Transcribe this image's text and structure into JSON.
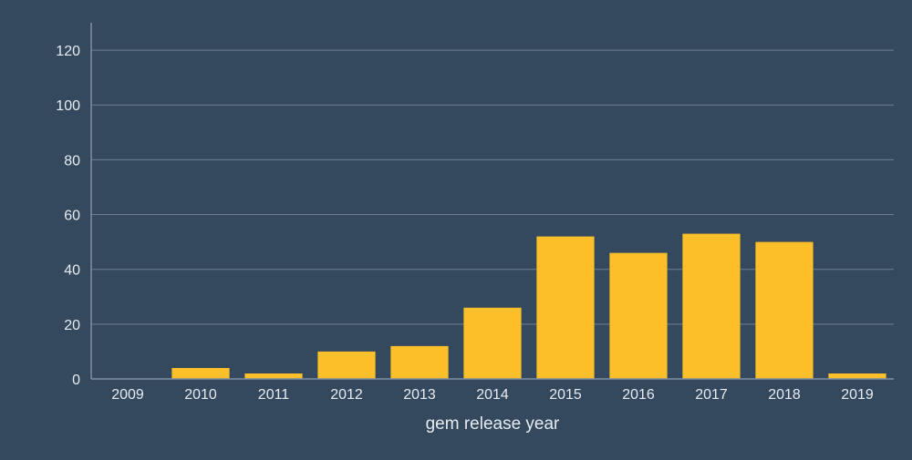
{
  "chart_data": {
    "type": "bar",
    "categories": [
      "2009",
      "2010",
      "2011",
      "2012",
      "2013",
      "2014",
      "2015",
      "2016",
      "2017",
      "2018",
      "2019"
    ],
    "values": [
      0,
      4,
      2,
      10,
      12,
      26,
      52,
      46,
      53,
      50,
      2
    ],
    "title": "",
    "xlabel": "gem release year",
    "ylabel": "",
    "ylim": [
      0,
      130
    ],
    "yticks": [
      0,
      20,
      40,
      60,
      80,
      100,
      120
    ],
    "grid": true,
    "legend": "none",
    "colors": {
      "background": "#34495e",
      "bar": "#fbbf2a",
      "grid": "#6e7f92",
      "text": "#e6ebf0"
    }
  }
}
